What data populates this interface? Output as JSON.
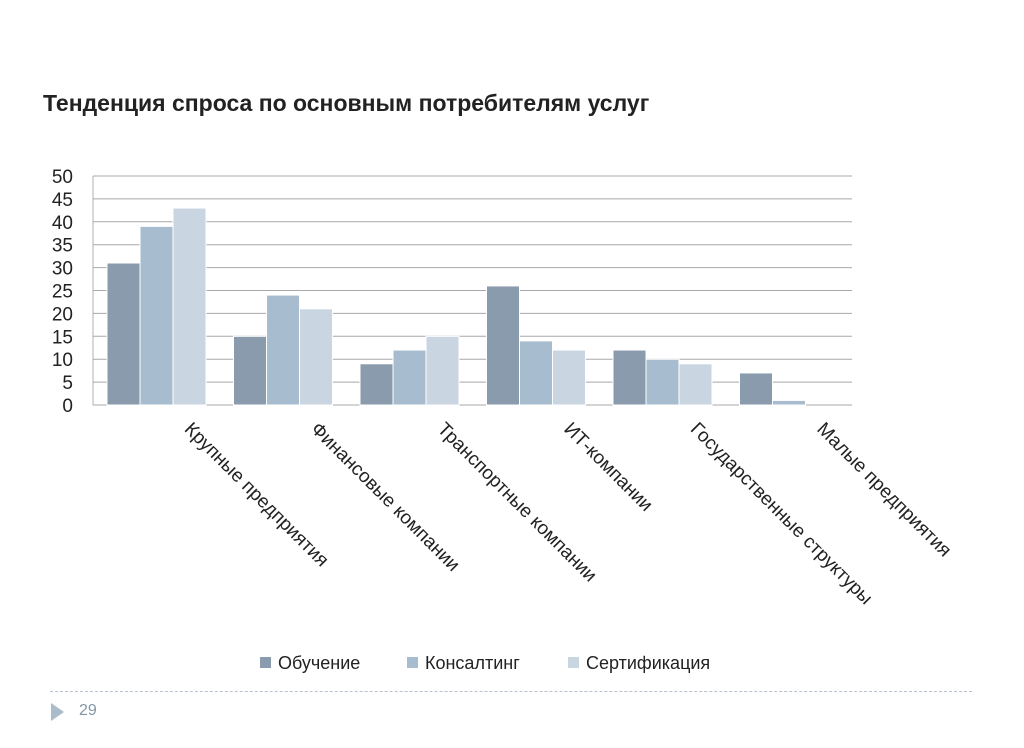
{
  "slide": {
    "title": "Тенденция спроса по основным потребителям услуг",
    "page_number": "29",
    "arrow_icon": "triangle-right-icon"
  },
  "chart_data": {
    "type": "bar",
    "title": "",
    "xlabel": "",
    "ylabel": "",
    "ylim": [
      0,
      50
    ],
    "yticks": [
      "0",
      "5",
      "10",
      "15",
      "20",
      "25",
      "30",
      "35",
      "40",
      "45",
      "50"
    ],
    "grid": true,
    "legend_position": "bottom",
    "categories": [
      "Крупные предприятия",
      "Финансовые компании",
      "Транспортные компании",
      "ИТ-компании",
      "Государственные структуры",
      "Малые предприятия"
    ],
    "series": [
      {
        "name": "Обучение",
        "color": "#8a9bae",
        "values": [
          31,
          15,
          9,
          26,
          12,
          7
        ]
      },
      {
        "name": "Консалтинг",
        "color": "#a8bccf",
        "values": [
          39,
          24,
          12,
          14,
          10,
          1
        ]
      },
      {
        "name": "Сертификация",
        "color": "#c9d6e1",
        "values": [
          43,
          21,
          15,
          12,
          9,
          0
        ]
      }
    ]
  }
}
